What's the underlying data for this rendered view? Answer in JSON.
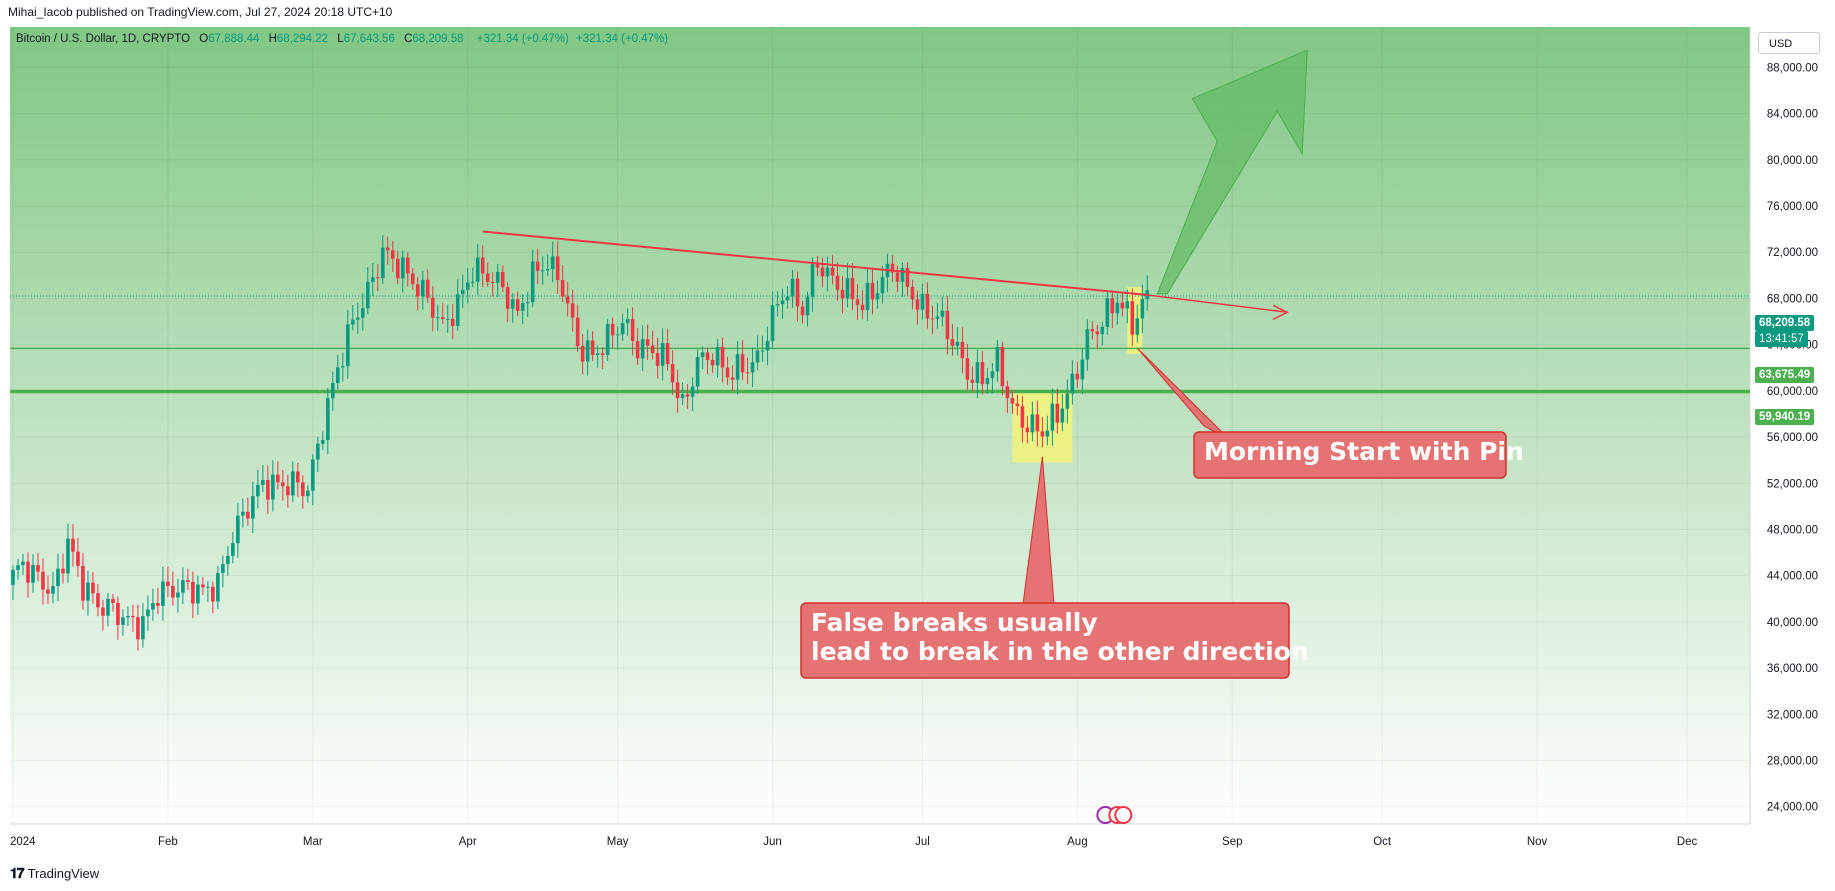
{
  "header": {
    "published": "Mihai_Iacob published on TradingView.com, Jul 27, 2024 20:18 UTC+10"
  },
  "legend": {
    "symbol": "Bitcoin / U.S. Dollar, 1D, CRYPTO",
    "open_label": "O",
    "open": "67,888.44",
    "high_label": "H",
    "high": "68,294.22",
    "low_label": "L",
    "low": "67,643.56",
    "close_label": "C",
    "close": "68,209.58",
    "change1": "+321.34 (+0.47%)",
    "change2": "+321.34 (+0.47%)"
  },
  "currency": "USD",
  "price_labels": {
    "last": "68,209.58",
    "countdown": "13:41:57",
    "level1": "63,675.49",
    "level2": "59,940.19"
  },
  "annotations": {
    "callout1": "Morning Start with Pin",
    "callout2_line1": "False breaks usually",
    "callout2_line2": "lead to break in the other direction"
  },
  "footer": {
    "brand": "TradingView"
  },
  "colors": {
    "up": "#089981",
    "down": "#f23645",
    "trendline": "#f23645",
    "support": "#4caf50",
    "highlight": "#f5f57a",
    "callout_bg": "#e57373",
    "arrow": "#66bb6a",
    "bg_top": "#81c784",
    "bg_bottom": "#ffffff"
  },
  "chart_data": {
    "type": "candlestick",
    "x_tick_labels": [
      "2024",
      "Feb",
      "Mar",
      "Apr",
      "May",
      "Jun",
      "Jul",
      "Aug",
      "Sep",
      "Oct",
      "Nov",
      "Dec"
    ],
    "y_ticks": [
      24000,
      28000,
      32000,
      36000,
      40000,
      44000,
      48000,
      52000,
      56000,
      60000,
      64000,
      68000,
      72000,
      76000,
      80000,
      84000,
      88000
    ],
    "y_tick_labels": [
      "24,000.00",
      "28,000.00",
      "32,000.00",
      "36,000.00",
      "40,000.00",
      "44,000.00",
      "48,000.00",
      "52,000.00",
      "56,000.00",
      "60,000.00",
      "64,000.00",
      "68,000.00",
      "72,000.00",
      "76,000.00",
      "80,000.00",
      "84,000.00",
      "88,000.00"
    ],
    "ylim": [
      22500,
      91500
    ],
    "closes": [
      [
        0,
        43500
      ],
      [
        3,
        45000
      ],
      [
        6,
        43800
      ],
      [
        9,
        42500
      ],
      [
        12,
        46900
      ],
      [
        15,
        43200
      ],
      [
        18,
        41500
      ],
      [
        21,
        41100
      ],
      [
        24,
        40000
      ],
      [
        27,
        39800
      ],
      [
        30,
        42500
      ],
      [
        33,
        42800
      ],
      [
        36,
        43000
      ],
      [
        39,
        42600
      ],
      [
        42,
        43300
      ],
      [
        45,
        47500
      ],
      [
        48,
        50000
      ],
      [
        51,
        52000
      ],
      [
        54,
        51800
      ],
      [
        57,
        52000
      ],
      [
        60,
        51500
      ],
      [
        63,
        57000
      ],
      [
        66,
        62000
      ],
      [
        69,
        66000
      ],
      [
        72,
        68500
      ],
      [
        75,
        72000
      ],
      [
        78,
        71000
      ],
      [
        81,
        69500
      ],
      [
        84,
        68000
      ],
      [
        87,
        65500
      ],
      [
        90,
        67500
      ],
      [
        93,
        70500
      ],
      [
        96,
        70000
      ],
      [
        99,
        69000
      ],
      [
        102,
        66500
      ],
      [
        105,
        70000
      ],
      [
        108,
        71200
      ],
      [
        111,
        69000
      ],
      [
        114,
        64000
      ],
      [
        117,
        63000
      ],
      [
        120,
        64500
      ],
      [
        123,
        66000
      ],
      [
        126,
        63800
      ],
      [
        129,
        63500
      ],
      [
        132,
        62500
      ],
      [
        135,
        58500
      ],
      [
        138,
        62500
      ],
      [
        141,
        63200
      ],
      [
        144,
        61500
      ],
      [
        147,
        62000
      ],
      [
        150,
        62600
      ],
      [
        153,
        66500
      ],
      [
        156,
        69000
      ],
      [
        159,
        67000
      ],
      [
        162,
        71200
      ],
      [
        165,
        69500
      ],
      [
        168,
        68500
      ],
      [
        171,
        67500
      ],
      [
        174,
        69000
      ],
      [
        177,
        70800
      ],
      [
        180,
        69000
      ],
      [
        183,
        67000
      ],
      [
        186,
        66500
      ],
      [
        189,
        64500
      ],
      [
        192,
        61500
      ],
      [
        195,
        61000
      ],
      [
        198,
        62500
      ],
      [
        201,
        58500
      ],
      [
        204,
        57000
      ],
      [
        207,
        56500
      ],
      [
        210,
        58000
      ],
      [
        213,
        60500
      ],
      [
        216,
        64500
      ],
      [
        219,
        66000
      ],
      [
        222,
        68000
      ],
      [
        225,
        65800
      ],
      [
        228,
        68210
      ]
    ],
    "levels": [
      {
        "name": "63,675.49",
        "value": 63675.49
      },
      {
        "name": "59,940.19",
        "value": 59940.19
      }
    ],
    "trendline": [
      [
        94,
        73800
      ],
      [
        227,
        68300
      ]
    ],
    "last_price": 68209.58
  }
}
